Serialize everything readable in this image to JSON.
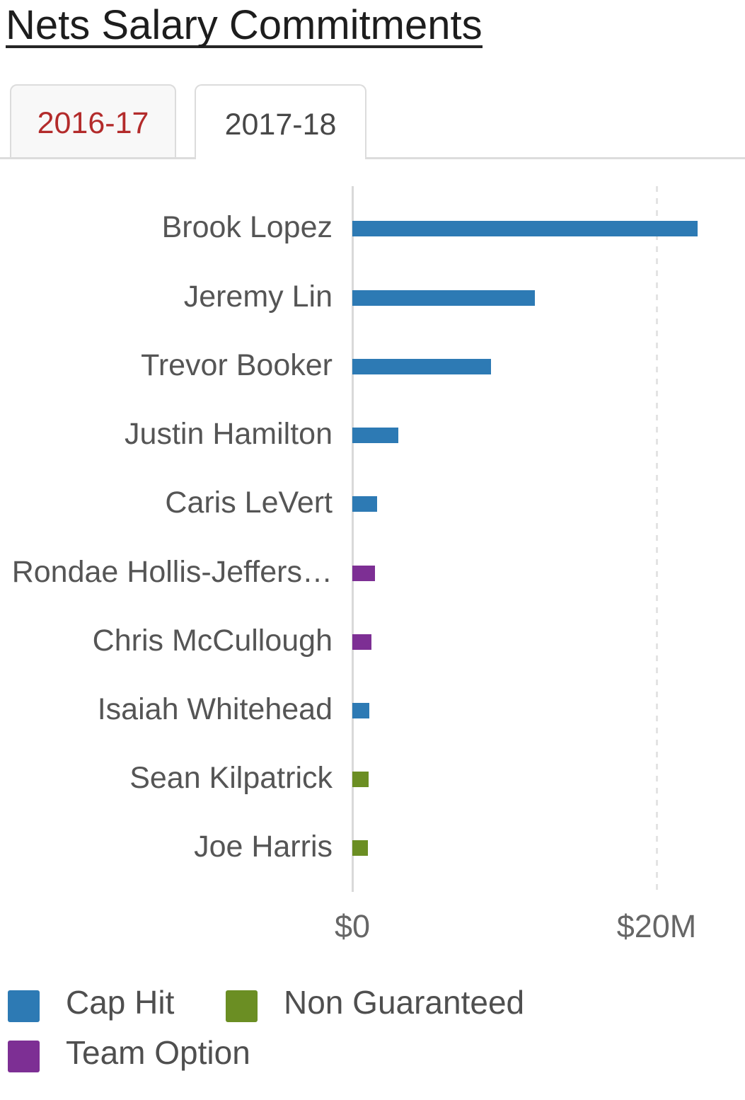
{
  "header": {
    "title": "Nets Salary Commitments"
  },
  "tabs": [
    {
      "label": "2016-17",
      "active": false,
      "text_color": "#b32b2b"
    },
    {
      "label": "2017-18",
      "active": true,
      "text_color": "#484848"
    }
  ],
  "chart_data": {
    "type": "bar",
    "orientation": "horizontal",
    "title": "Nets Salary Commitments",
    "active_season": "2017-18",
    "categories": [
      "Brook Lopez",
      "Jeremy Lin",
      "Trevor Booker",
      "Justin Hamilton",
      "Caris LeVert",
      "Rondae Hollis-Jeffers…",
      "Chris McCullough",
      "Isaiah Whitehead",
      "Sean Kilpatrick",
      "Joe Harris"
    ],
    "points": [
      {
        "label": "Brook Lopez",
        "series": "Cap Hit",
        "value_musd": 22.7
      },
      {
        "label": "Jeremy Lin",
        "series": "Cap Hit",
        "value_musd": 12.0
      },
      {
        "label": "Trevor Booker",
        "series": "Cap Hit",
        "value_musd": 9.13
      },
      {
        "label": "Justin Hamilton",
        "series": "Cap Hit",
        "value_musd": 3.0
      },
      {
        "label": "Caris LeVert",
        "series": "Cap Hit",
        "value_musd": 1.62
      },
      {
        "label": "Rondae Hollis-Jeffers…",
        "series": "Team Option",
        "value_musd": 1.47
      },
      {
        "label": "Chris McCullough",
        "series": "Team Option",
        "value_musd": 1.24
      },
      {
        "label": "Isaiah Whitehead",
        "series": "Cap Hit",
        "value_musd": 1.11
      },
      {
        "label": "Sean Kilpatrick",
        "series": "Non Guaranteed",
        "value_musd": 1.05
      },
      {
        "label": "Joe Harris",
        "series": "Non Guaranteed",
        "value_musd": 1.04
      }
    ],
    "series": [
      {
        "name": "Cap Hit",
        "color": "#2d7ab4"
      },
      {
        "name": "Non Guaranteed",
        "color": "#6b8e23"
      },
      {
        "name": "Team Option",
        "color": "#7d2f94"
      }
    ],
    "xaxis": {
      "unit": "million USD",
      "range_musd": [
        0,
        25.8
      ],
      "ticks": [
        {
          "value": 0,
          "label": "$0"
        },
        {
          "value": 20,
          "label": "$20M"
        }
      ],
      "gridline_at_musd": 20,
      "gridline_style": "dashed"
    },
    "ylabel": "",
    "xlabel": "",
    "legend_position": "bottom-left",
    "colors": {
      "axis_line": "#d9d9d9",
      "gridline": "#e3e3e3",
      "category_label": "#555555",
      "tick_label": "#666666"
    }
  },
  "legend": {
    "items": [
      {
        "name": "Cap Hit",
        "color": "#2d7ab4"
      },
      {
        "name": "Non Guaranteed",
        "color": "#6b8e23"
      },
      {
        "name": "Team Option",
        "color": "#7d2f94"
      }
    ]
  }
}
